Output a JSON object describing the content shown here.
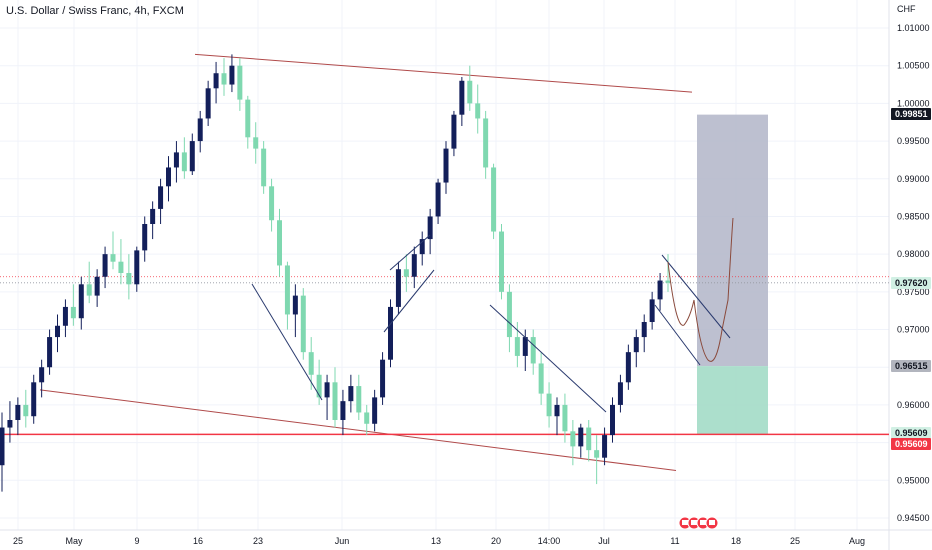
{
  "header": {
    "title": "U.S. Dollar / Swiss Franc, 4h, FXCM"
  },
  "chart_data": {
    "type": "candlestick",
    "symbol": "U.S. Dollar / Swiss Franc",
    "interval": "4h",
    "source": "FXCM",
    "currency_label": "CHF",
    "ylim": [
      0.943,
      1.0135
    ],
    "y_ticks": [
      "1.01000",
      "1.00500",
      "1.00000",
      "0.99500",
      "0.99000",
      "0.98500",
      "0.98000",
      "0.97500",
      "0.97000",
      "0.96500",
      "0.96000",
      "0.95500",
      "0.95000",
      "0.94500"
    ],
    "x_ticks": [
      "25",
      "May",
      "9",
      "16",
      "23",
      "Jun",
      "13",
      "20",
      "14:00",
      "Jul",
      "11",
      "18",
      "25",
      "Aug"
    ],
    "price_labels": [
      {
        "value": 0.99851,
        "text": "0.99851",
        "color": "#131722",
        "text_color": "#ffffff"
      },
      {
        "value": 0.9762,
        "text": "0.97620",
        "color": "#d1f0e4",
        "text_color": "#131722"
      },
      {
        "value": 0.96515,
        "text": "0.96515",
        "color": "#b2b5be",
        "text_color": "#131722"
      },
      {
        "value": 0.95609,
        "text": "0.95609",
        "color": "#d1f0e4",
        "text_color": "#131722"
      },
      {
        "value": 0.95609,
        "text": "0.95609",
        "color": "#f23645",
        "text_color": "#ffffff"
      }
    ],
    "horizontal_lines": [
      {
        "name": "support",
        "value": 0.95609,
        "color": "#f23645"
      },
      {
        "name": "current-price",
        "value": 0.9762,
        "color": "#f23645",
        "dotted": true
      },
      {
        "name": "current-price-2",
        "value": 0.9762,
        "color": "#b2b5be",
        "dotted": true
      }
    ],
    "position_tool": {
      "target": 0.99851,
      "entry": 0.96515,
      "stop": 0.95609,
      "profit_color": "#b2b5c8",
      "loss_color": "#a3dcc6"
    },
    "trend_lines": [
      {
        "name": "upper-channel",
        "points": [
          [
            "Apr 16",
            1.0065
          ],
          [
            "Jul 18",
            1.0015
          ]
        ],
        "color": "#b04a4a"
      },
      {
        "name": "lower-channel",
        "points": [
          [
            "Apr 25",
            0.962
          ],
          [
            "Jul 11",
            0.9513
          ]
        ],
        "color": "#b04a4a"
      }
    ],
    "colors": {
      "up": "#131f5a",
      "down": "#7fd8b0",
      "grid": "#f0f3fa"
    },
    "candles": [
      [
        0.952,
        0.959,
        0.9485,
        0.957
      ],
      [
        0.957,
        0.9605,
        0.955,
        0.958
      ],
      [
        0.958,
        0.961,
        0.956,
        0.96
      ],
      [
        0.96,
        0.962,
        0.957,
        0.9585
      ],
      [
        0.9585,
        0.964,
        0.9575,
        0.963
      ],
      [
        0.963,
        0.966,
        0.961,
        0.965
      ],
      [
        0.965,
        0.97,
        0.964,
        0.969
      ],
      [
        0.969,
        0.972,
        0.967,
        0.9705
      ],
      [
        0.9705,
        0.974,
        0.969,
        0.973
      ],
      [
        0.973,
        0.976,
        0.9705,
        0.9715
      ],
      [
        0.9715,
        0.977,
        0.97,
        0.976
      ],
      [
        0.976,
        0.979,
        0.9735,
        0.9745
      ],
      [
        0.9745,
        0.978,
        0.973,
        0.977
      ],
      [
        0.977,
        0.981,
        0.9755,
        0.98
      ],
      [
        0.98,
        0.983,
        0.978,
        0.979
      ],
      [
        0.979,
        0.982,
        0.976,
        0.9775
      ],
      [
        0.9775,
        0.98,
        0.974,
        0.976
      ],
      [
        0.976,
        0.981,
        0.975,
        0.9805
      ],
      [
        0.9805,
        0.985,
        0.979,
        0.984
      ],
      [
        0.984,
        0.987,
        0.982,
        0.986
      ],
      [
        0.986,
        0.99,
        0.984,
        0.989
      ],
      [
        0.989,
        0.993,
        0.987,
        0.9915
      ],
      [
        0.9915,
        0.995,
        0.9895,
        0.9935
      ],
      [
        0.9935,
        0.9955,
        0.99,
        0.991
      ],
      [
        0.991,
        0.996,
        0.9905,
        0.995
      ],
      [
        0.995,
        0.999,
        0.9935,
        0.998
      ],
      [
        0.998,
        1.003,
        0.997,
        1.002
      ],
      [
        1.002,
        1.0055,
        1.0,
        1.004
      ],
      [
        1.004,
        1.006,
        1.001,
        1.0025
      ],
      [
        1.0025,
        1.0065,
        1.0015,
        1.005
      ],
      [
        1.005,
        1.006,
        0.999,
        1.0005
      ],
      [
        1.0005,
        1.001,
        0.994,
        0.9955
      ],
      [
        0.9955,
        0.9975,
        0.992,
        0.994
      ],
      [
        0.994,
        0.995,
        0.988,
        0.989
      ],
      [
        0.989,
        0.99,
        0.983,
        0.9845
      ],
      [
        0.9845,
        0.986,
        0.977,
        0.9785
      ],
      [
        0.9785,
        0.979,
        0.97,
        0.972
      ],
      [
        0.972,
        0.976,
        0.969,
        0.9745
      ],
      [
        0.9745,
        0.9755,
        0.966,
        0.967
      ],
      [
        0.967,
        0.969,
        0.962,
        0.964
      ],
      [
        0.964,
        0.966,
        0.96,
        0.961
      ],
      [
        0.961,
        0.964,
        0.958,
        0.963
      ],
      [
        0.963,
        0.965,
        0.957,
        0.958
      ],
      [
        0.958,
        0.962,
        0.956,
        0.9605
      ],
      [
        0.9605,
        0.964,
        0.959,
        0.9625
      ],
      [
        0.9625,
        0.964,
        0.958,
        0.959
      ],
      [
        0.959,
        0.96,
        0.956,
        0.9575
      ],
      [
        0.9575,
        0.962,
        0.9565,
        0.961
      ],
      [
        0.961,
        0.967,
        0.96,
        0.966
      ],
      [
        0.966,
        0.974,
        0.965,
        0.973
      ],
      [
        0.973,
        0.979,
        0.972,
        0.978
      ],
      [
        0.978,
        0.98,
        0.975,
        0.977
      ],
      [
        0.977,
        0.981,
        0.9755,
        0.98
      ],
      [
        0.98,
        0.983,
        0.9785,
        0.982
      ],
      [
        0.982,
        0.986,
        0.98,
        0.985
      ],
      [
        0.985,
        0.99,
        0.984,
        0.9895
      ],
      [
        0.9895,
        0.995,
        0.988,
        0.994
      ],
      [
        0.994,
        0.999,
        0.993,
        0.9985
      ],
      [
        0.9985,
        1.0035,
        0.997,
        1.003
      ],
      [
        1.003,
        1.005,
        0.999,
        1.0
      ],
      [
        1.0,
        1.0025,
        0.996,
        0.998
      ],
      [
        0.998,
        0.999,
        0.99,
        0.9915
      ],
      [
        0.9915,
        0.992,
        0.982,
        0.983
      ],
      [
        0.983,
        0.984,
        0.974,
        0.975
      ],
      [
        0.975,
        0.976,
        0.967,
        0.969
      ],
      [
        0.969,
        0.971,
        0.965,
        0.9665
      ],
      [
        0.9665,
        0.97,
        0.9645,
        0.969
      ],
      [
        0.969,
        0.97,
        0.964,
        0.9655
      ],
      [
        0.9655,
        0.967,
        0.96,
        0.9615
      ],
      [
        0.9615,
        0.963,
        0.957,
        0.9585
      ],
      [
        0.9585,
        0.961,
        0.956,
        0.96
      ],
      [
        0.96,
        0.9615,
        0.955,
        0.9565
      ],
      [
        0.9565,
        0.958,
        0.952,
        0.9545
      ],
      [
        0.9545,
        0.9575,
        0.953,
        0.957
      ],
      [
        0.957,
        0.958,
        0.9525,
        0.954
      ],
      [
        0.954,
        0.956,
        0.9495,
        0.953
      ],
      [
        0.953,
        0.957,
        0.952,
        0.956
      ],
      [
        0.956,
        0.961,
        0.955,
        0.96
      ],
      [
        0.96,
        0.964,
        0.959,
        0.963
      ],
      [
        0.963,
        0.968,
        0.962,
        0.967
      ],
      [
        0.967,
        0.97,
        0.965,
        0.969
      ],
      [
        0.969,
        0.972,
        0.967,
        0.971
      ],
      [
        0.971,
        0.975,
        0.97,
        0.974
      ],
      [
        0.974,
        0.9775,
        0.9725,
        0.9765
      ],
      [
        0.9765,
        0.98,
        0.975,
        0.9762
      ]
    ]
  },
  "bottom_icons": [
    "flag-icon",
    "flag-icon",
    "flag-icon",
    "flag-icon"
  ]
}
